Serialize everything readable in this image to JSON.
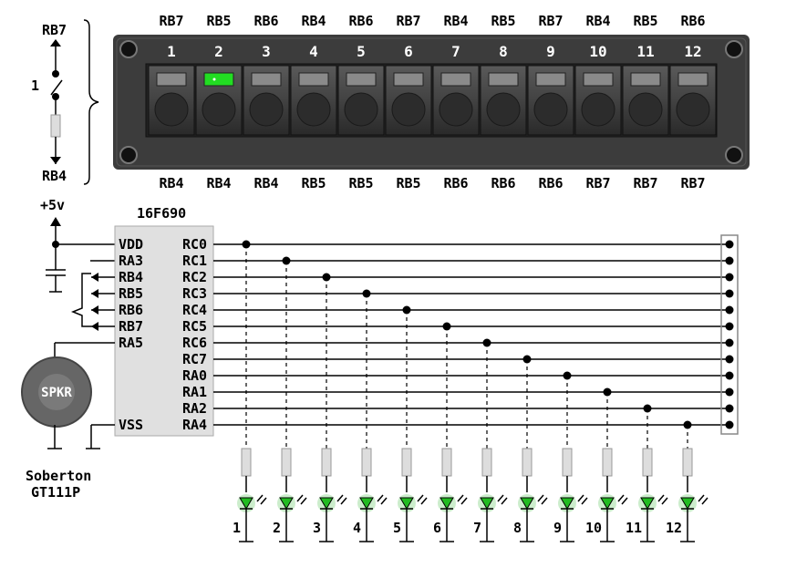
{
  "switch_block": {
    "top_label": "RB7",
    "bottom_label": "RB4",
    "switch_label": "1"
  },
  "panel": {
    "top_row_labels": [
      "RB7",
      "RB5",
      "RB6",
      "RB4",
      "RB6",
      "RB7",
      "RB4",
      "RB5",
      "RB7",
      "RB4",
      "RB5",
      "RB6"
    ],
    "bottom_row_labels": [
      "RB4",
      "RB4",
      "RB4",
      "RB5",
      "RB5",
      "RB5",
      "RB6",
      "RB6",
      "RB6",
      "RB7",
      "RB7",
      "RB7"
    ],
    "button_numbers": [
      "1",
      "2",
      "3",
      "4",
      "5",
      "6",
      "7",
      "8",
      "9",
      "10",
      "11",
      "12"
    ],
    "lit_button": 2,
    "lit_color": "#22dd22",
    "body_color": "#3c3c3c"
  },
  "power_label": "+5v",
  "chip": {
    "name": "16F690",
    "left_pins": [
      "VDD",
      "RA3",
      "RB4",
      "RB5",
      "RB6",
      "RB7",
      "RA5",
      "VSS"
    ],
    "right_pins": [
      "RC0",
      "RC1",
      "RC2",
      "RC3",
      "RC4",
      "RC5",
      "RC6",
      "RC7",
      "RA0",
      "RA1",
      "RA2",
      "RA4"
    ],
    "body_color": "#e0e0e0"
  },
  "speaker": {
    "label": "SPKR",
    "caption_line1": "Soberton",
    "caption_line2": "GT111P"
  },
  "leds": {
    "labels": [
      "1",
      "2",
      "3",
      "4",
      "5",
      "6",
      "7",
      "8",
      "9",
      "10",
      "11",
      "12"
    ],
    "color": "#22bb22"
  }
}
